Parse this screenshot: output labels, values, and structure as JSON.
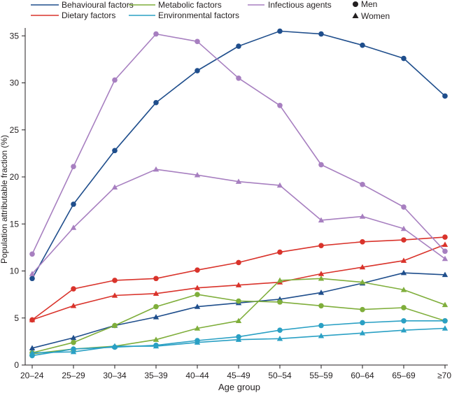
{
  "chart_data": {
    "type": "line",
    "title": "",
    "xlabel": "Age group",
    "ylabel": "Population attributable fraction (%)",
    "ylim": [
      0,
      36
    ],
    "yticks": [
      0,
      5,
      10,
      15,
      20,
      25,
      30,
      35
    ],
    "grid": false,
    "legend_position": "top",
    "categories": [
      "20–24",
      "25–29",
      "30–34",
      "35–39",
      "40–44",
      "45–49",
      "50–54",
      "55–59",
      "60–64",
      "65–69",
      "≥70"
    ],
    "legend": {
      "factors": [
        {
          "id": "behavioural",
          "label": "Behavioural factors",
          "color": "#1f4e8c"
        },
        {
          "id": "dietary",
          "label": "Dietary factors",
          "color": "#d9332b"
        },
        {
          "id": "metabolic",
          "label": "Metabolic factors",
          "color": "#7fae3b"
        },
        {
          "id": "environmental",
          "label": "Environmental factors",
          "color": "#2aa0c4"
        },
        {
          "id": "infectious",
          "label": "Infectious agents",
          "color": "#a77fc0"
        }
      ],
      "markers": [
        {
          "id": "men",
          "label": "Men",
          "marker": "circle"
        },
        {
          "id": "women",
          "label": "Women",
          "marker": "triangle"
        }
      ]
    },
    "series": [
      {
        "name": "Behavioural factors – Men",
        "factor": "behavioural",
        "sex": "men",
        "color": "#1f4e8c",
        "marker": "circle",
        "values": [
          9.2,
          17.1,
          22.8,
          27.9,
          31.3,
          33.9,
          35.5,
          35.2,
          34.0,
          32.6,
          28.6
        ]
      },
      {
        "name": "Behavioural factors – Women",
        "factor": "behavioural",
        "sex": "women",
        "color": "#1f4e8c",
        "marker": "triangle",
        "values": [
          1.8,
          2.9,
          4.2,
          5.1,
          6.2,
          6.6,
          7.0,
          7.7,
          8.7,
          9.8,
          9.6
        ]
      },
      {
        "name": "Dietary factors – Men",
        "factor": "dietary",
        "sex": "men",
        "color": "#d9332b",
        "marker": "circle",
        "values": [
          4.8,
          8.1,
          9.0,
          9.2,
          10.1,
          10.9,
          12.0,
          12.7,
          13.1,
          13.3,
          13.6
        ]
      },
      {
        "name": "Dietary factors – Women",
        "factor": "dietary",
        "sex": "women",
        "color": "#d9332b",
        "marker": "triangle",
        "values": [
          4.8,
          6.3,
          7.4,
          7.6,
          8.2,
          8.5,
          8.8,
          9.7,
          10.4,
          11.1,
          12.8
        ]
      },
      {
        "name": "Metabolic factors – Men",
        "factor": "metabolic",
        "sex": "men",
        "color": "#7fae3b",
        "marker": "circle",
        "values": [
          1.3,
          2.4,
          4.2,
          6.2,
          7.5,
          6.8,
          6.7,
          6.3,
          5.9,
          6.1,
          4.7
        ]
      },
      {
        "name": "Metabolic factors – Women",
        "factor": "metabolic",
        "sex": "women",
        "color": "#7fae3b",
        "marker": "triangle",
        "values": [
          1.2,
          1.7,
          2.0,
          2.7,
          3.9,
          4.7,
          9.0,
          9.2,
          8.8,
          8.0,
          6.4
        ]
      },
      {
        "name": "Environmental factors – Men",
        "factor": "environmental",
        "sex": "men",
        "color": "#2aa0c4",
        "marker": "circle",
        "values": [
          1.0,
          1.7,
          1.9,
          2.1,
          2.6,
          3.0,
          3.7,
          4.2,
          4.5,
          4.7,
          4.7
        ]
      },
      {
        "name": "Environmental factors – Women",
        "factor": "environmental",
        "sex": "women",
        "color": "#2aa0c4",
        "marker": "triangle",
        "values": [
          1.3,
          1.4,
          2.0,
          2.0,
          2.4,
          2.7,
          2.8,
          3.1,
          3.4,
          3.7,
          3.9
        ]
      },
      {
        "name": "Infectious agents – Men",
        "factor": "infectious",
        "sex": "men",
        "color": "#a77fc0",
        "marker": "circle",
        "values": [
          11.8,
          21.1,
          30.3,
          35.2,
          34.4,
          30.5,
          27.6,
          21.3,
          19.2,
          16.8,
          12.1
        ]
      },
      {
        "name": "Infectious agents – Women",
        "factor": "infectious",
        "sex": "women",
        "color": "#a77fc0",
        "marker": "triangle",
        "values": [
          9.7,
          14.6,
          18.9,
          20.8,
          20.2,
          19.5,
          19.1,
          15.4,
          15.8,
          14.5,
          11.3
        ]
      }
    ]
  }
}
